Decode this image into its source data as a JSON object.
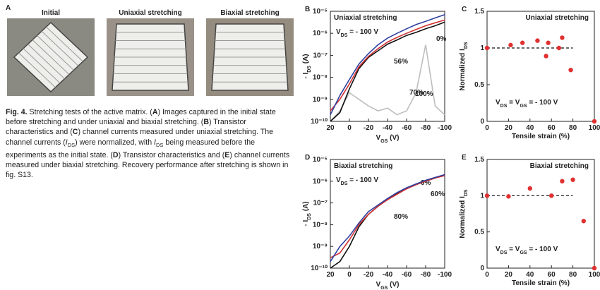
{
  "figure": {
    "label": "A",
    "photos": [
      "Initial",
      "Uniaxial stretching",
      "Biaxial stretching"
    ],
    "caption": [
      {
        "text": "Fig. 4.",
        "style": "bold"
      },
      {
        "text": " Stretching tests of the active matrix. ("
      },
      {
        "text": "A",
        "style": "bold"
      },
      {
        "text": ") Images captured in the initial state before stretching and under uniaxial and biaxial stretching. ("
      },
      {
        "text": "B",
        "style": "bold"
      },
      {
        "text": ") Transistor characteristics and ("
      },
      {
        "text": "C",
        "style": "bold"
      },
      {
        "text": ") channel currents measured under uniaxial stretching. The channel currents ("
      },
      {
        "text": "I",
        "style": "italic"
      },
      {
        "text": "DS",
        "style": "sub"
      },
      {
        "text": ") were normalized, with "
      },
      {
        "text": "I",
        "style": "italic"
      },
      {
        "text": "DS",
        "style": "sub"
      },
      {
        "text": " being measured before the experiments as the initial state. ("
      },
      {
        "text": "D",
        "style": "bold"
      },
      {
        "text": ") Transistor characteristics and ("
      },
      {
        "text": "E",
        "style": "bold"
      },
      {
        "text": ") channel currents measured under biaxial stretching. Recovery performance after stretching is shown in fig. S13."
      }
    ]
  },
  "chart_data": [
    {
      "type": "line",
      "panel": "B",
      "title": "Uniaxial stretching",
      "annotation": [
        "V",
        "DS",
        " = - 100 V"
      ],
      "xlabel": [
        "V",
        "GS",
        " (V)"
      ],
      "ylabel": [
        "- I",
        "DS",
        " (A)"
      ],
      "log_y": true,
      "xlim": [
        20,
        -100
      ],
      "xticks": [
        20,
        0,
        -20,
        -40,
        -60,
        -80,
        -100
      ],
      "ylim": [
        1e-10,
        1e-05
      ],
      "yticks": [
        {
          "value": 1e-10,
          "label": "10⁻¹⁰"
        },
        {
          "value": 1e-09,
          "label": "10⁻⁹"
        },
        {
          "value": 1e-08,
          "label": "10⁻⁸"
        },
        {
          "value": 1e-07,
          "label": "10⁻⁷"
        },
        {
          "value": 1e-06,
          "label": "10⁻⁶"
        },
        {
          "value": 1e-05,
          "label": "10⁻⁵"
        }
      ],
      "x": [
        20,
        10,
        0,
        -10,
        -20,
        -30,
        -40,
        -50,
        -60,
        -70,
        -80,
        -90,
        -100
      ],
      "series": [
        {
          "name": "100%",
          "color": "#bdbdbd",
          "values": [
            1e-10,
            3e-10,
            2e-09,
            1e-09,
            5e-10,
            3e-10,
            4e-10,
            2e-10,
            3e-10,
            2e-09,
            3e-07,
            5e-10,
            2e-10
          ]
        },
        {
          "name": "0%",
          "color": "#111111",
          "values": [
            1e-10,
            2.5e-10,
            3e-09,
            2.5e-08,
            8e-08,
            1.6e-07,
            3.2e-07,
            5e-07,
            8e-07,
            1.1e-06,
            1.6e-06,
            2.2e-06,
            3.2e-06
          ]
        },
        {
          "name": "56%",
          "color": "#d03030",
          "values": [
            3e-10,
            1e-09,
            5e-09,
            3e-08,
            9e-08,
            2e-07,
            4e-07,
            6.5e-07,
            1e-06,
            1.5e-06,
            2.2e-06,
            3e-06,
            4e-06
          ]
        },
        {
          "name": "70%",
          "color": "#3040a0",
          "values": [
            2e-10,
            1.5e-09,
            8e-09,
            4e-08,
            1.2e-07,
            3e-07,
            6e-07,
            1e-06,
            1.6e-06,
            2.5e-06,
            3.5e-06,
            5e-06,
            7e-06
          ]
        }
      ]
    },
    {
      "type": "scatter",
      "panel": "C",
      "title": "Uniaxial stretching",
      "annotation": [
        "V",
        "DS",
        " = V",
        "GS",
        " = - 100 V"
      ],
      "xlabel": [
        "Tensile strain (%)"
      ],
      "ylabel": [
        "Normalized I",
        "DS"
      ],
      "xlim": [
        0,
        100
      ],
      "xticks": [
        0,
        20,
        40,
        60,
        80,
        100
      ],
      "ylim": [
        0,
        1.5
      ],
      "yticks": [
        0,
        0.5,
        1,
        1.5
      ],
      "reference_line": 1,
      "color": "#e03030",
      "x": [
        0,
        22,
        33,
        47,
        55,
        57,
        67,
        70,
        78,
        100
      ],
      "values": [
        1.0,
        1.04,
        1.07,
        1.1,
        0.89,
        1.07,
        1.0,
        1.14,
        0.7,
        0.0
      ]
    },
    {
      "type": "line",
      "panel": "D",
      "title": "Biaxial stretching",
      "annotation": [
        "V",
        "DS",
        " = - 100 V"
      ],
      "xlabel": [
        "V",
        "GS",
        " (V)"
      ],
      "ylabel": [
        "- I",
        "DS",
        " (A)"
      ],
      "log_y": true,
      "xlim": [
        20,
        -100
      ],
      "xticks": [
        20,
        0,
        -20,
        -40,
        -60,
        -80,
        -100
      ],
      "ylim": [
        1e-10,
        1e-05
      ],
      "yticks": [
        {
          "value": 1e-10,
          "label": "10⁻¹⁰"
        },
        {
          "value": 1e-09,
          "label": "10⁻⁹"
        },
        {
          "value": 1e-08,
          "label": "10⁻⁸"
        },
        {
          "value": 1e-07,
          "label": "10⁻⁷"
        },
        {
          "value": 1e-06,
          "label": "10⁻⁶"
        },
        {
          "value": 1e-05,
          "label": "10⁻⁵"
        }
      ],
      "x": [
        20,
        10,
        0,
        -10,
        -20,
        -30,
        -40,
        -50,
        -60,
        -70,
        -80,
        -90,
        -100
      ],
      "series": [
        {
          "name": "0%",
          "color": "#111111",
          "values": [
            1e-10,
            2e-10,
            1e-09,
            8e-09,
            3e-08,
            7e-08,
            1.5e-07,
            2.7e-07,
            4.5e-07,
            7e-07,
            1e-06,
            1.4e-06,
            2e-06
          ]
        },
        {
          "name": "60%",
          "color": "#d03030",
          "values": [
            3e-10,
            5e-10,
            2e-09,
            1e-08,
            3e-08,
            7e-08,
            1.4e-07,
            2.5e-07,
            4.5e-07,
            7e-07,
            1e-06,
            1.4e-06,
            1.8e-06
          ]
        },
        {
          "name": "80%",
          "color": "#3040a0",
          "values": [
            2e-10,
            1e-09,
            3e-09,
            1.2e-08,
            4e-08,
            8e-08,
            1.6e-07,
            3e-07,
            5e-07,
            7.5e-07,
            1.1e-06,
            1.5e-06,
            2e-06
          ]
        }
      ]
    },
    {
      "type": "scatter",
      "panel": "E",
      "title": "Biaxial stretching",
      "annotation": [
        "V",
        "DS",
        " = V",
        "GS",
        " = - 100 V"
      ],
      "xlabel": [
        "Tensile strain (%)"
      ],
      "ylabel": [
        "Normalized I",
        "DS"
      ],
      "xlim": [
        0,
        100
      ],
      "xticks": [
        0,
        20,
        40,
        60,
        80,
        100
      ],
      "ylim": [
        0,
        1.5
      ],
      "yticks": [
        0,
        0.5,
        1,
        1.5
      ],
      "reference_line": 1,
      "color": "#e03030",
      "x": [
        0,
        20,
        40,
        60,
        70,
        80,
        90,
        100
      ],
      "values": [
        1.0,
        0.99,
        1.1,
        1.0,
        1.2,
        1.22,
        0.65,
        0.0
      ]
    }
  ]
}
